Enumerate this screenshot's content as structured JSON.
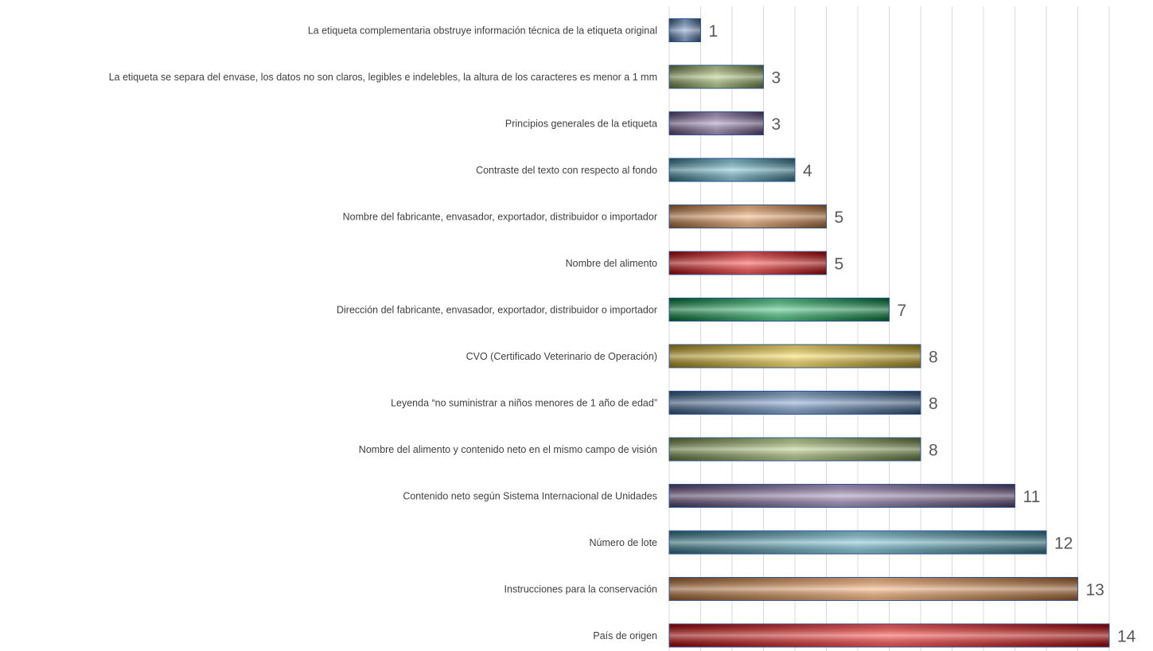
{
  "chart_data": {
    "type": "bar",
    "orientation": "horizontal",
    "categories": [
      "La etiqueta complementaria obstruye información técnica de la etiqueta original",
      "La etiqueta se separa del envase, los datos no son claros, legibles e indelebles, la altura de los caracteres es menor a 1 mm",
      "Principios generales de la etiqueta",
      "Contraste del texto con respecto al fondo",
      "Nombre del fabricante, envasador, exportador, distribuidor o importador",
      "Nombre del alimento",
      "Dirección del fabricante, envasador, exportador, distribuidor o importador",
      "CVO (Certificado Veterinario de Operación)",
      "Leyenda “no suministrar a niños menores de 1 año de edad”",
      "Nombre del alimento y contenido neto en el mismo campo de visión",
      "Contenido neto según Sistema Internacional de Unidades",
      "Número de lote",
      "Instrucciones para la conservación",
      "País de origen"
    ],
    "values": [
      1,
      3,
      3,
      4,
      5,
      5,
      7,
      8,
      8,
      8,
      11,
      12,
      13,
      14
    ],
    "value_labels": [
      "1",
      "3",
      "3",
      "4",
      "5",
      "5",
      "7",
      "8",
      "8",
      "8",
      "11",
      "12",
      "13",
      "14"
    ],
    "colors": [
      "#4f81bd",
      "#9bbb59",
      "#8064a2",
      "#4bacc6",
      "#f79646",
      "#ff0000",
      "#00b050",
      "#ffd320",
      "#4f81bd",
      "#9bbb59",
      "#8064a2",
      "#4bacc6",
      "#f79646",
      "#ff0000"
    ],
    "title": "",
    "xlabel": "",
    "ylabel": "",
    "xlim": [
      0,
      14
    ],
    "grid": true,
    "legend": "none"
  }
}
